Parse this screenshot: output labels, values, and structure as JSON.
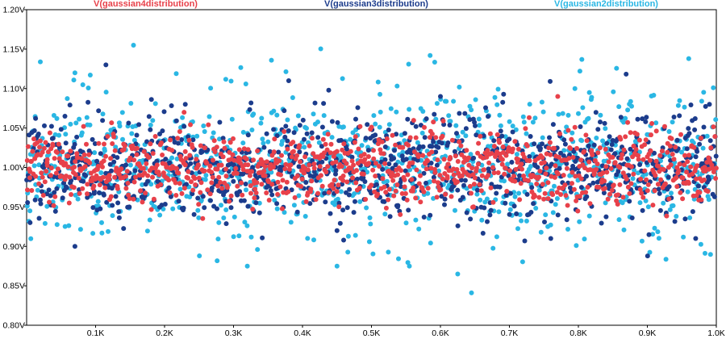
{
  "chart_data": {
    "type": "scatter",
    "title": "",
    "xlabel": "",
    "ylabel": "",
    "xlim": [
      0,
      1000
    ],
    "ylim": [
      0.8,
      1.2
    ],
    "grid": false,
    "legend_position": "top",
    "x_ticks": [
      {
        "value": 100,
        "label": "0.1K"
      },
      {
        "value": 200,
        "label": "0.2K"
      },
      {
        "value": 300,
        "label": "0.3K"
      },
      {
        "value": 400,
        "label": "0.4K"
      },
      {
        "value": 500,
        "label": "0.5K"
      },
      {
        "value": 600,
        "label": "0.6K"
      },
      {
        "value": 700,
        "label": "0.7K"
      },
      {
        "value": 800,
        "label": "0.8K"
      },
      {
        "value": 900,
        "label": "0.9K"
      },
      {
        "value": 1000,
        "label": "1.0K"
      }
    ],
    "y_ticks": [
      {
        "value": 0.8,
        "label": "0.80V"
      },
      {
        "value": 0.85,
        "label": "0.85V"
      },
      {
        "value": 0.9,
        "label": "0.90V"
      },
      {
        "value": 0.95,
        "label": "0.95V"
      },
      {
        "value": 1.0,
        "label": "1.00V"
      },
      {
        "value": 1.05,
        "label": "1.05V"
      },
      {
        "value": 1.1,
        "label": "1.10V"
      },
      {
        "value": 1.15,
        "label": "1.15V"
      },
      {
        "value": 1.2,
        "label": "1.20V"
      }
    ],
    "series": [
      {
        "name": "V(gaussian4distribution)",
        "color": "#e8414a",
        "points_per_series": 1000,
        "mean": 1.0,
        "stddev": 0.022,
        "values_sample": [
          [
            30,
            1.01
          ],
          [
            120,
            0.99
          ],
          [
            230,
            1.02
          ],
          [
            330,
            0.98
          ],
          [
            460,
            1.03
          ],
          [
            560,
            0.97
          ],
          [
            690,
            1.01
          ],
          [
            770,
            1.09
          ],
          [
            860,
            1.0
          ],
          [
            960,
            0.98
          ]
        ]
      },
      {
        "name": "V(gaussian3distribution)",
        "color": "#1c3c8c",
        "points_per_series": 1000,
        "mean": 1.0,
        "stddev": 0.033,
        "values_sample": [
          [
            115,
            1.13
          ],
          [
            380,
            1.11
          ],
          [
            230,
            1.08
          ],
          [
            600,
            1.09
          ],
          [
            990,
            1.08
          ],
          [
            970,
            0.91
          ],
          [
            70,
            0.9
          ],
          [
            450,
            0.92
          ],
          [
            760,
            0.91
          ],
          [
            5,
            0.93
          ]
        ]
      },
      {
        "name": "V(gaussian2distribution)",
        "color": "#2ab7e4",
        "points_per_series": 1000,
        "mean": 1.0,
        "stddev": 0.045,
        "values_sample": [
          [
            155,
            1.155
          ],
          [
            585,
            1.142
          ],
          [
            960,
            1.138
          ],
          [
            355,
            1.136
          ],
          [
            805,
            1.137
          ],
          [
            70,
            1.12
          ],
          [
            645,
            0.841
          ],
          [
            625,
            0.865
          ],
          [
            555,
            0.875
          ],
          [
            320,
            0.875
          ],
          [
            450,
            0.875
          ]
        ]
      }
    ]
  }
}
